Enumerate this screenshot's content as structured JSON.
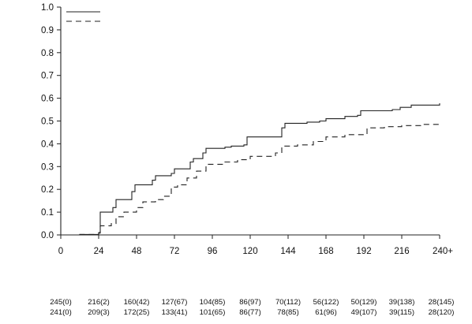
{
  "chart_data": {
    "type": "line",
    "step": true,
    "grid": false,
    "title": "",
    "xlabel": "",
    "ylabel": "",
    "xlim": [
      0,
      240
    ],
    "ylim": [
      0.0,
      1.0
    ],
    "x_ticks": [
      0,
      24,
      48,
      72,
      96,
      120,
      144,
      168,
      192,
      216,
      240
    ],
    "x_tick_labels": [
      "0",
      "24",
      "48",
      "72",
      "96",
      "120",
      "144",
      "168",
      "192",
      "216",
      "240+"
    ],
    "y_ticks": [
      0.0,
      0.1,
      0.2,
      0.3,
      0.4,
      0.5,
      0.6,
      0.7,
      0.8,
      0.9,
      1.0
    ],
    "y_tick_labels": [
      "0.0",
      "0.1",
      "0.2",
      "0.3",
      "0.4",
      "0.5",
      "0.6",
      "0.7",
      "0.8",
      "0.9",
      "1.0"
    ],
    "legend": {
      "placement": "top-left",
      "entries": [
        {
          "series_index": 0,
          "style": "solid"
        },
        {
          "series_index": 1,
          "style": "dashed"
        }
      ]
    },
    "series": [
      {
        "style": "solid",
        "color": "#222222",
        "points": [
          [
            0,
            0.0
          ],
          [
            12,
            0.002
          ],
          [
            24,
            0.008
          ],
          [
            25,
            0.1
          ],
          [
            32,
            0.1
          ],
          [
            33,
            0.12
          ],
          [
            35,
            0.155
          ],
          [
            43,
            0.155
          ],
          [
            45,
            0.19
          ],
          [
            47,
            0.22
          ],
          [
            56,
            0.22
          ],
          [
            58,
            0.24
          ],
          [
            60,
            0.26
          ],
          [
            68,
            0.26
          ],
          [
            70,
            0.27
          ],
          [
            72,
            0.29
          ],
          [
            80,
            0.29
          ],
          [
            82,
            0.32
          ],
          [
            84,
            0.335
          ],
          [
            88,
            0.335
          ],
          [
            90,
            0.36
          ],
          [
            92,
            0.38
          ],
          [
            104,
            0.385
          ],
          [
            108,
            0.39
          ],
          [
            116,
            0.395
          ],
          [
            118,
            0.43
          ],
          [
            136,
            0.43
          ],
          [
            140,
            0.47
          ],
          [
            142,
            0.49
          ],
          [
            156,
            0.495
          ],
          [
            164,
            0.5
          ],
          [
            168,
            0.51
          ],
          [
            180,
            0.52
          ],
          [
            188,
            0.525
          ],
          [
            190,
            0.545
          ],
          [
            210,
            0.55
          ],
          [
            215,
            0.56
          ],
          [
            222,
            0.57
          ],
          [
            230,
            0.57
          ],
          [
            240,
            0.578
          ]
        ]
      },
      {
        "style": "dashed",
        "color": "#222222",
        "points": [
          [
            0,
            0.0
          ],
          [
            12,
            0.002
          ],
          [
            24,
            0.01
          ],
          [
            25,
            0.04
          ],
          [
            32,
            0.05
          ],
          [
            35,
            0.08
          ],
          [
            40,
            0.1
          ],
          [
            48,
            0.12
          ],
          [
            52,
            0.145
          ],
          [
            60,
            0.155
          ],
          [
            65,
            0.17
          ],
          [
            70,
            0.21
          ],
          [
            74,
            0.22
          ],
          [
            80,
            0.25
          ],
          [
            86,
            0.28
          ],
          [
            92,
            0.31
          ],
          [
            104,
            0.32
          ],
          [
            112,
            0.33
          ],
          [
            120,
            0.345
          ],
          [
            136,
            0.36
          ],
          [
            140,
            0.39
          ],
          [
            150,
            0.395
          ],
          [
            160,
            0.41
          ],
          [
            168,
            0.43
          ],
          [
            180,
            0.44
          ],
          [
            190,
            0.44
          ],
          [
            194,
            0.47
          ],
          [
            205,
            0.475
          ],
          [
            216,
            0.48
          ],
          [
            228,
            0.485
          ],
          [
            240,
            0.49
          ]
        ]
      }
    ],
    "risk_table": {
      "times": [
        0,
        24,
        48,
        72,
        96,
        120,
        144,
        168,
        192,
        216,
        240
      ],
      "rows": [
        {
          "style": "solid",
          "cells": [
            "245(0)",
            "216(2)",
            "160(42)",
            "127(67)",
            "104(85)",
            "86(97)",
            "70(112)",
            "56(122)",
            "50(129)",
            "39(138)",
            "28(145)"
          ]
        },
        {
          "style": "dashed",
          "cells": [
            "241(0)",
            "209(3)",
            "172(25)",
            "133(41)",
            "101(65)",
            "86(77)",
            "78(85)",
            "61(96)",
            "49(107)",
            "39(115)",
            "28(120)"
          ]
        }
      ]
    }
  }
}
